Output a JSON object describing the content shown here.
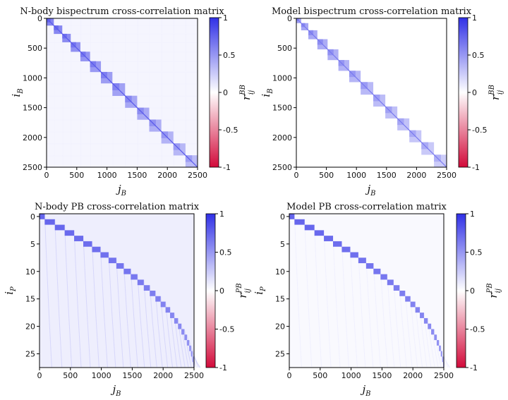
{
  "chart_data": [
    {
      "type": "heatmap",
      "title": "N-body bispectrum cross-correlation matrix",
      "xlabel": "j_B",
      "ylabel": "i_B",
      "colorbar_label": "r_ij^BB",
      "x_ticks": [
        0,
        500,
        1000,
        1500,
        2000,
        2500
      ],
      "y_ticks": [
        0,
        500,
        1000,
        1500,
        2000,
        2500
      ],
      "xlim": [
        0,
        2500
      ],
      "ylim": [
        2500,
        0
      ],
      "colorbar": {
        "cmap": "red-white-blue",
        "range": [
          -1,
          1
        ],
        "ticks": [
          1,
          0.5,
          0,
          -0.5,
          -1
        ],
        "tick_labels": [
          "1",
          "0.5",
          "0",
          "-0.5",
          "-1"
        ]
      },
      "pattern": "block-diagonal",
      "blocks": [
        [
          0,
          120
        ],
        [
          120,
          260
        ],
        [
          260,
          400
        ],
        [
          400,
          560
        ],
        [
          560,
          720
        ],
        [
          720,
          900
        ],
        [
          900,
          1090
        ],
        [
          1090,
          1300
        ],
        [
          1300,
          1500
        ],
        [
          1500,
          1700
        ],
        [
          1700,
          1900
        ],
        [
          1900,
          2100
        ],
        [
          2100,
          2300
        ],
        [
          2300,
          2500
        ]
      ],
      "block_value": 0.6,
      "background_value": 0.05
    },
    {
      "type": "heatmap",
      "title": "Model bispectrum cross-correlation matrix",
      "xlabel": "j_B",
      "ylabel": "i_B",
      "colorbar_label": "r_ij^BB",
      "x_ticks": [
        0,
        500,
        1000,
        1500,
        2000,
        2500
      ],
      "y_ticks": [
        0,
        500,
        1000,
        1500,
        2000,
        2500
      ],
      "xlim": [
        0,
        2500
      ],
      "ylim": [
        2500,
        0
      ],
      "colorbar": {
        "cmap": "red-white-blue",
        "range": [
          -1,
          1
        ],
        "ticks": [
          1,
          0.5,
          0,
          -0.5,
          -1
        ],
        "tick_labels": [
          "1",
          "0.5",
          "0",
          "-0.5",
          "-1"
        ]
      },
      "pattern": "block-diagonal",
      "blocks": [
        [
          0,
          80
        ],
        [
          80,
          200
        ],
        [
          200,
          350
        ],
        [
          350,
          520
        ],
        [
          520,
          700
        ],
        [
          700,
          880
        ],
        [
          880,
          1070
        ],
        [
          1070,
          1280
        ],
        [
          1280,
          1480
        ],
        [
          1480,
          1680
        ],
        [
          1680,
          1880
        ],
        [
          1880,
          2080
        ],
        [
          2080,
          2290
        ],
        [
          2290,
          2500
        ]
      ],
      "block_value": 0.45,
      "background_value": 0.0
    },
    {
      "type": "heatmap",
      "title": "N-body PB cross-correlation matrix",
      "xlabel": "j_B",
      "ylabel": "i_P",
      "colorbar_label": "r_ij^PB",
      "x_ticks": [
        0,
        500,
        1000,
        1500,
        2000,
        2500
      ],
      "y_ticks": [
        0,
        5,
        10,
        15,
        20,
        25
      ],
      "xlim": [
        0,
        2500
      ],
      "ylim": [
        27.5,
        -0.5
      ],
      "colorbar": {
        "cmap": "red-white-blue",
        "range": [
          -1,
          1
        ],
        "ticks": [
          1,
          0.5,
          0,
          -0.5,
          -1
        ],
        "tick_labels": [
          "1",
          "0.5",
          "0",
          "-0.5",
          "-1"
        ]
      },
      "pattern": "diagonal-curve",
      "diagonal_value": 0.75,
      "background_value": 0.08
    },
    {
      "type": "heatmap",
      "title": "Model PB cross-correlation matrix",
      "xlabel": "j_B",
      "ylabel": "i_P",
      "colorbar_label": "r_ij^PB",
      "x_ticks": [
        0,
        500,
        1000,
        1500,
        2000,
        2500
      ],
      "y_ticks": [
        0,
        5,
        10,
        15,
        20,
        25
      ],
      "xlim": [
        0,
        2500
      ],
      "ylim": [
        27.5,
        -0.5
      ],
      "colorbar": {
        "cmap": "red-white-blue",
        "range": [
          -1,
          1
        ],
        "ticks": [
          1,
          0.5,
          0,
          -0.5,
          -1
        ],
        "tick_labels": [
          "1",
          "0.5",
          "0",
          "-0.5",
          "-1"
        ]
      },
      "pattern": "diagonal-curve",
      "diagonal_value": 0.75,
      "background_value": 0.03
    }
  ],
  "colors": {
    "positive": "#3b3bdc",
    "zero": "#ffffff",
    "negative": "#d0103a"
  }
}
